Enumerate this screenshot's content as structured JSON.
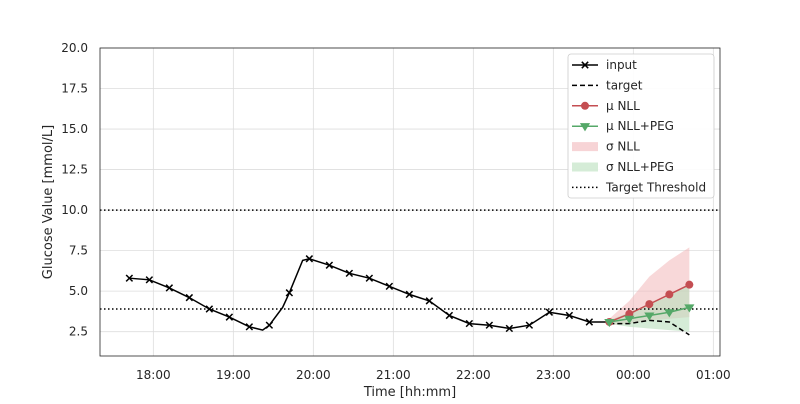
{
  "chart_data": {
    "type": "line",
    "title": "",
    "xlabel": "Time [hh:mm]",
    "ylabel": "Glucose Value [mmol/L]",
    "xlim": [
      "17:20",
      "01:05"
    ],
    "ylim": [
      1.0,
      20.0
    ],
    "grid": true,
    "legend_position": "top-right",
    "x_ticks": [
      "18:00",
      "19:00",
      "20:00",
      "21:00",
      "22:00",
      "23:00",
      "00:00",
      "01:00"
    ],
    "y_ticks": [
      "2.5",
      "5.0",
      "7.5",
      "10.0",
      "12.5",
      "15.0",
      "17.5",
      "20.0"
    ],
    "colors": {
      "input": "#000000",
      "target": "#000000",
      "mu_nll": "#c44e52",
      "mu_nll_peg": "#55a868",
      "sigma_nll": "#f2b8ba",
      "sigma_nll_peg": "#b9dfbd",
      "threshold": "#000000",
      "grid": "#dddddd"
    },
    "thresholds": [
      3.9,
      10.0
    ],
    "legend": [
      {
        "key": "input",
        "label": "input"
      },
      {
        "key": "target",
        "label": "target"
      },
      {
        "key": "mu_nll",
        "label": "μ NLL"
      },
      {
        "key": "mu_nll_peg",
        "label": "μ NLL+PEG"
      },
      {
        "key": "sigma_nll",
        "label": "σ NLL"
      },
      {
        "key": "sigma_nll_peg",
        "label": "σ NLL+PEG"
      },
      {
        "key": "threshold",
        "label": "Target Threshold"
      }
    ],
    "series": {
      "input": {
        "x": [
          "17:42",
          "17:57",
          "18:12",
          "18:27",
          "18:42",
          "18:57",
          "19:12",
          "19:22",
          "19:27",
          "19:37",
          "19:42",
          "19:52",
          "19:57",
          "20:12",
          "20:27",
          "20:42",
          "20:57",
          "21:12",
          "21:27",
          "21:42",
          "21:57",
          "22:12",
          "22:27",
          "22:42",
          "22:57",
          "23:12",
          "23:27",
          "23:42"
        ],
        "y": [
          5.8,
          5.7,
          5.2,
          4.6,
          3.9,
          3.4,
          2.8,
          2.6,
          2.9,
          4.0,
          4.9,
          6.9,
          7.0,
          6.6,
          6.1,
          5.8,
          5.3,
          4.8,
          4.4,
          3.5,
          3.0,
          2.9,
          2.7,
          2.9,
          3.7,
          3.5,
          3.1,
          3.1
        ],
        "markers": [
          true,
          true,
          true,
          true,
          true,
          true,
          true,
          false,
          true,
          false,
          true,
          false,
          true,
          true,
          true,
          true,
          true,
          true,
          true,
          true,
          true,
          true,
          true,
          true,
          true,
          true,
          true,
          false
        ]
      },
      "target": {
        "x": [
          "23:42",
          "23:57",
          "00:12",
          "00:27",
          "00:42"
        ],
        "y": [
          3.0,
          3.0,
          3.2,
          3.1,
          2.3
        ]
      },
      "mu_nll": {
        "x": [
          "23:42",
          "23:57",
          "00:12",
          "00:27",
          "00:42"
        ],
        "y": [
          3.1,
          3.6,
          4.2,
          4.8,
          5.4
        ]
      },
      "mu_nll_peg": {
        "x": [
          "23:42",
          "23:57",
          "00:12",
          "00:27",
          "00:42"
        ],
        "y": [
          3.1,
          3.3,
          3.5,
          3.7,
          4.0
        ]
      },
      "sigma_nll": {
        "x": [
          "23:42",
          "23:57",
          "00:12",
          "00:27",
          "00:42"
        ],
        "lower": [
          2.9,
          3.0,
          3.2,
          3.3,
          3.4
        ],
        "upper": [
          3.3,
          4.4,
          5.9,
          6.9,
          7.7
        ]
      },
      "sigma_nll_peg": {
        "x": [
          "23:42",
          "23:57",
          "00:12",
          "00:27",
          "00:42"
        ],
        "lower": [
          3.0,
          2.8,
          2.7,
          2.6,
          2.5
        ],
        "upper": [
          3.2,
          3.7,
          4.2,
          4.7,
          5.4
        ]
      }
    }
  }
}
